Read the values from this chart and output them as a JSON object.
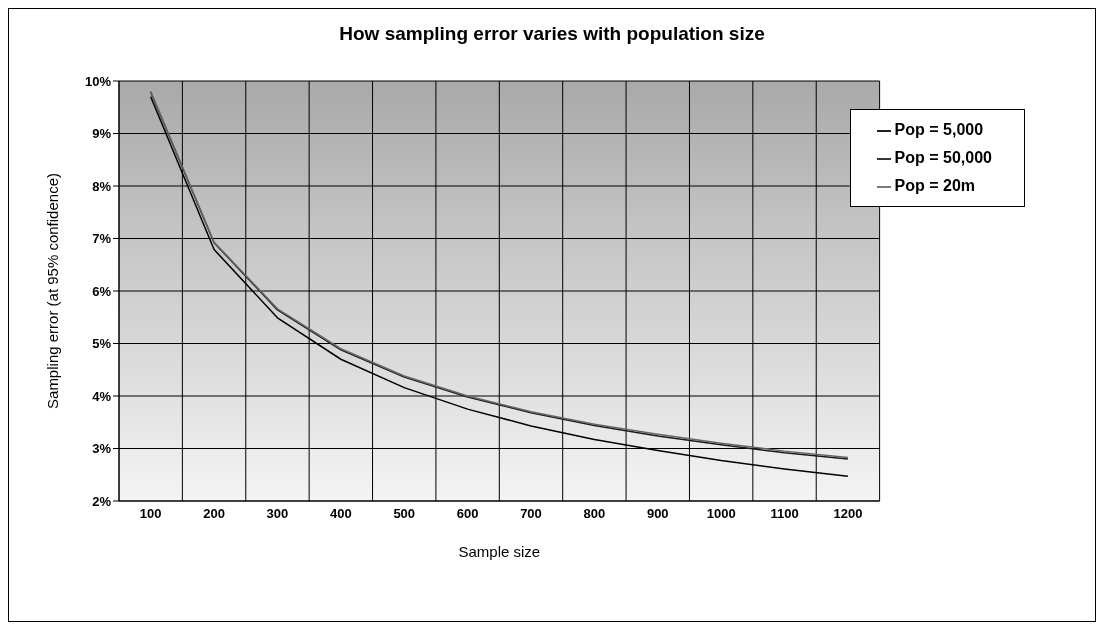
{
  "chart_data": {
    "type": "line",
    "title": "How sampling error varies with population size",
    "xlabel": "Sample size",
    "ylabel": "Sampling error (at 95% confidence)",
    "categories": [
      "100",
      "200",
      "300",
      "400",
      "500",
      "600",
      "700",
      "800",
      "900",
      "1000",
      "1100",
      "1200"
    ],
    "series": [
      {
        "name": "Pop = 5,000",
        "color": "#000000",
        "values": [
          9.7,
          6.79,
          5.49,
          4.7,
          4.16,
          3.75,
          3.43,
          3.17,
          2.96,
          2.77,
          2.61,
          2.47
        ]
      },
      {
        "name": "Pop = 50,000",
        "color": "#1a1a1a",
        "values": [
          9.79,
          6.92,
          5.64,
          4.88,
          4.36,
          3.98,
          3.68,
          3.44,
          3.24,
          3.07,
          2.92,
          2.8
        ]
      },
      {
        "name": "Pop = 20m",
        "color": "#666666",
        "values": [
          9.8,
          6.93,
          5.66,
          4.9,
          4.38,
          4.0,
          3.7,
          3.46,
          3.27,
          3.1,
          2.95,
          2.83
        ]
      }
    ],
    "ylim": [
      2,
      10
    ],
    "yticks": [
      {
        "value": 2,
        "label": "2%"
      },
      {
        "value": 3,
        "label": "3%"
      },
      {
        "value": 4,
        "label": "4%"
      },
      {
        "value": 5,
        "label": "5%"
      },
      {
        "value": 6,
        "label": "6%"
      },
      {
        "value": 7,
        "label": "7%"
      },
      {
        "value": 8,
        "label": "8%"
      },
      {
        "value": 9,
        "label": "9%"
      },
      {
        "value": 10,
        "label": "10%"
      }
    ],
    "grid": true,
    "legend": "top right",
    "marker": "none",
    "line_style": "solid"
  }
}
